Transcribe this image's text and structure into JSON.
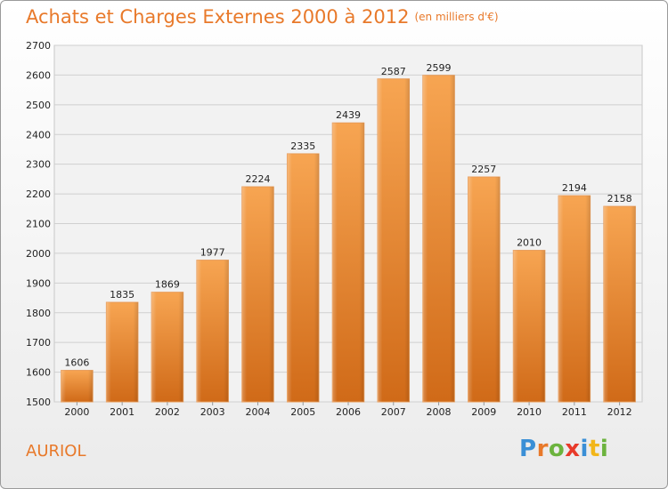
{
  "header": {
    "title": "Achats et Charges Externes 2000 à 2012",
    "unit": "(en milliers d'€)"
  },
  "footer": {
    "city": "AURIOL",
    "logo": {
      "letters": [
        "P",
        "r",
        "o",
        "x",
        "i",
        "t",
        "i"
      ],
      "colors": [
        "#3a8fd6",
        "#e8792a",
        "#6cb33e",
        "#e83a2a",
        "#3a8fd6",
        "#f2b619",
        "#6cb33e"
      ]
    }
  },
  "chart_data": {
    "type": "bar",
    "title": "Achats et Charges Externes 2000 à 2012",
    "subtitle": "(en milliers d'€)",
    "categories": [
      "2000",
      "2001",
      "2002",
      "2003",
      "2004",
      "2005",
      "2006",
      "2007",
      "2008",
      "2009",
      "2010",
      "2011",
      "2012"
    ],
    "values": [
      1606,
      1835,
      1869,
      1977,
      2224,
      2335,
      2439,
      2587,
      2599,
      2257,
      2010,
      2194,
      2158
    ],
    "ylim": [
      1500,
      2700
    ],
    "yticks": [
      1500,
      1600,
      1700,
      1800,
      1900,
      2000,
      2100,
      2200,
      2300,
      2400,
      2500,
      2600,
      2700
    ],
    "grid": true,
    "bar_color": "#f08a32",
    "data_labels": true
  }
}
